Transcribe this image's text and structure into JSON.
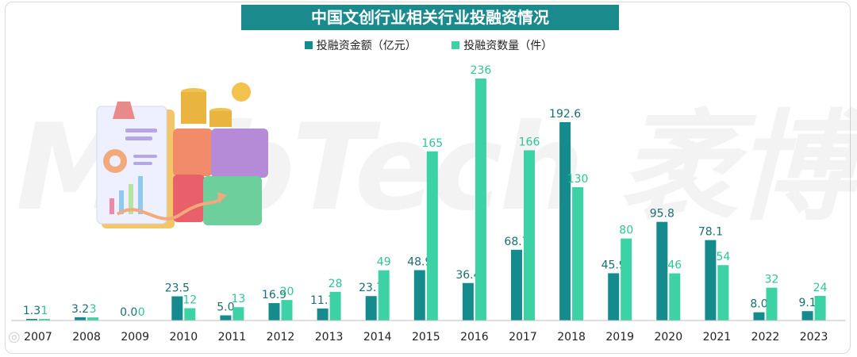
{
  "title": "中国文创行业相关行业投融资情况",
  "watermark": "MobTech 袤博",
  "colors": {
    "amount": "#168b8e",
    "count": "#3dd2a6",
    "title_bg": "#1a8a8c"
  },
  "chart_data": {
    "type": "bar",
    "title": "中国文创行业相关行业投融资情况",
    "categories": [
      "2007",
      "2008",
      "2009",
      "2010",
      "2011",
      "2012",
      "2013",
      "2014",
      "2015",
      "2016",
      "2017",
      "2018",
      "2019",
      "2020",
      "2021",
      "2022",
      "2023"
    ],
    "series": [
      {
        "name": "投融资金额（亿元）",
        "values": [
          1.3,
          3.2,
          0.0,
          23.5,
          5.0,
          16.9,
          11.7,
          23.7,
          48.9,
          36.4,
          68.7,
          192.6,
          45.9,
          95.8,
          78.1,
          8.0,
          9.1
        ],
        "labels": [
          "1.3",
          "3.2",
          "0.0",
          "23.5",
          "5.0",
          "16.9",
          "11.7",
          "23.7",
          "48.9",
          "36.4",
          "68.7",
          "192.6",
          "45.9",
          "95.8",
          "78.1",
          "8.0",
          "9.1"
        ]
      },
      {
        "name": "投融资数量（件）",
        "values": [
          1,
          3,
          0,
          12,
          13,
          20,
          28,
          49,
          165,
          236,
          166,
          130,
          80,
          46,
          54,
          32,
          24
        ],
        "labels": [
          "1",
          "3",
          "0",
          "12",
          "13",
          "20",
          "28",
          "49",
          "165",
          "236",
          "166",
          "130",
          "80",
          "46",
          "54",
          "32",
          "24"
        ]
      }
    ],
    "legend_position": "top-center",
    "grid": false,
    "axis_y_visible": false
  }
}
